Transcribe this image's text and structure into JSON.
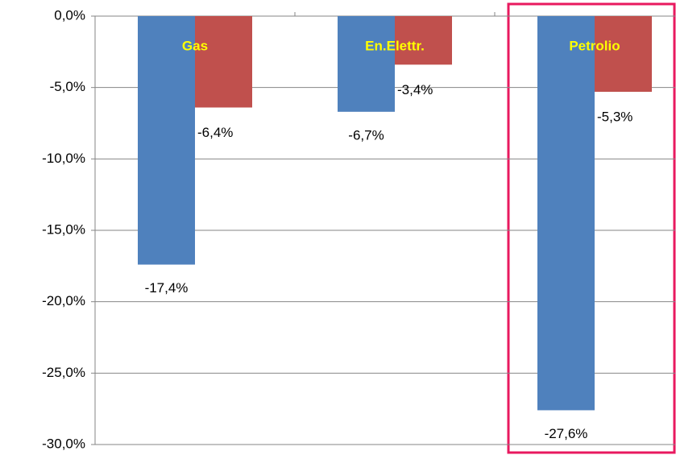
{
  "chart_data": {
    "type": "bar",
    "categories": [
      "Gas",
      "En.Elettr.",
      "Petrolio"
    ],
    "series": [
      {
        "color": "#4f81bd",
        "values": [
          -17.4,
          -6.7,
          -27.6
        ],
        "value_labels": [
          "-17,4%",
          "-6,7%",
          "-27,6%"
        ]
      },
      {
        "color": "#c0504d",
        "values": [
          -6.4,
          -3.4,
          -5.3
        ],
        "value_labels": [
          "-6,4%",
          "-3,4%",
          "-5,3%"
        ]
      }
    ],
    "ylim": [
      -30,
      0
    ],
    "yticks": [
      {
        "value": 0,
        "label": "0,0%"
      },
      {
        "value": -5,
        "label": "-5,0%"
      },
      {
        "value": -10,
        "label": "-10,0%"
      },
      {
        "value": -15,
        "label": "-15,0%"
      },
      {
        "value": -20,
        "label": "-20,0%"
      },
      {
        "value": -25,
        "label": "-25,0%"
      },
      {
        "value": -30,
        "label": "-30,0%"
      }
    ],
    "grid": true
  }
}
